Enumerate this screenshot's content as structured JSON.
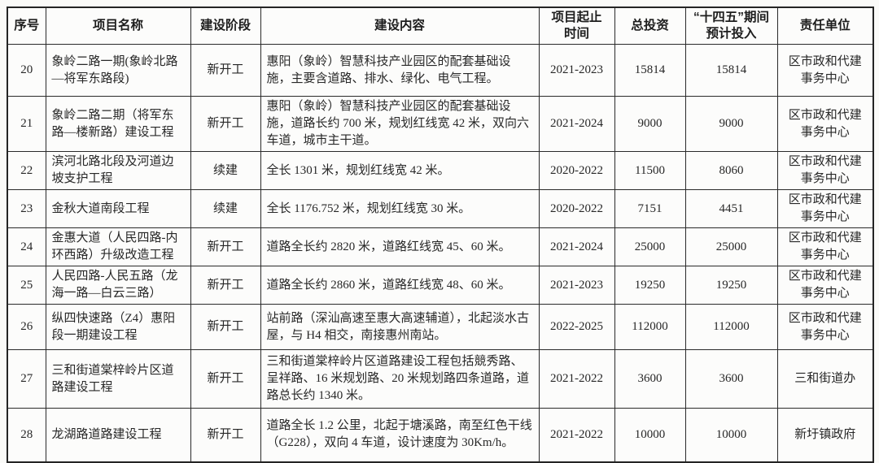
{
  "document": {
    "kind": "scanned-project-table",
    "text_color": "#272727",
    "border_color": "#2a2a2a",
    "background_color": "#fafaf8"
  },
  "table": {
    "columns": [
      {
        "key": "no",
        "label": "序号"
      },
      {
        "key": "name",
        "label": "项目名称"
      },
      {
        "key": "stage",
        "label": "建设阶段"
      },
      {
        "key": "content",
        "label": "建设内容"
      },
      {
        "key": "period",
        "label": "项目起止\n时间"
      },
      {
        "key": "total_investment",
        "label": "总投资"
      },
      {
        "key": "planned_investment",
        "label": "“十四五”期间\n预计投入"
      },
      {
        "key": "unit",
        "label": "责任单位"
      }
    ],
    "rows": [
      {
        "no": "20",
        "name": "象岭二路一期(象岭北路—将军东路段)",
        "stage": "新开工",
        "content": "惠阳（象岭）智慧科技产业园区的配套基础设施，主要含道路、排水、绿化、电气工程。",
        "period": "2021-2023",
        "total_investment": "15814",
        "planned_investment": "15814",
        "unit": "区市政和代建事务中心"
      },
      {
        "no": "21",
        "name": "象岭二路二期（将军东路—楼新路）建设工程",
        "stage": "新开工",
        "content": "惠阳（象岭）智慧科技产业园区的配套基础设施，道路长约 700 米，规划红线宽 42 米，双向六车道，城市主干道。",
        "period": "2021-2024",
        "total_investment": "9000",
        "planned_investment": "9000",
        "unit": "区市政和代建事务中心"
      },
      {
        "no": "22",
        "name": "滨河北路北段及河道边坡支护工程",
        "stage": "续建",
        "content": "全长 1301 米，规划红线宽 42 米。",
        "period": "2020-2022",
        "total_investment": "11500",
        "planned_investment": "8060",
        "unit": "区市政和代建事务中心"
      },
      {
        "no": "23",
        "name": "金秋大道南段工程",
        "stage": "续建",
        "content": "全长 1176.752 米，规划红线宽 30 米。",
        "period": "2020-2022",
        "total_investment": "7151",
        "planned_investment": "4451",
        "unit": "区市政和代建事务中心"
      },
      {
        "no": "24",
        "name": "金惠大道（人民四路-内环西路）升级改造工程",
        "stage": "新开工",
        "content": "道路全长约 2820 米，道路红线宽 45、60 米。",
        "period": "2021-2024",
        "total_investment": "25000",
        "planned_investment": "25000",
        "unit": "区市政和代建事务中心"
      },
      {
        "no": "25",
        "name": "人民四路-人民五路（龙海一路—白云三路）",
        "stage": "新开工",
        "content": "道路全长约 2860 米，道路红线宽 48、60 米。",
        "period": "2021-2023",
        "total_investment": "19250",
        "planned_investment": "19250",
        "unit": "区市政和代建事务中心"
      },
      {
        "no": "26",
        "name": "纵四快速路（Z4）惠阳段一期建设工程",
        "stage": "新开工",
        "content": "站前路（深汕高速至惠大高速辅道），北起淡水古屋，与 H4 相交，南接惠州南站。",
        "period": "2022-2025",
        "total_investment": "112000",
        "planned_investment": "112000",
        "unit": "区市政和代建事务中心"
      },
      {
        "no": "27",
        "name": "三和街道棠梓岭片区道路建设工程",
        "stage": "新开工",
        "content": "三和街道棠梓岭片区道路建设工程包括競秀路、呈祥路、16 米规划路、20 米规划路四条道路，道路总长约 1340 米。",
        "period": "2021-2022",
        "total_investment": "3600",
        "planned_investment": "3600",
        "unit": "三和街道办"
      },
      {
        "no": "28",
        "name": "龙湖路道路建设工程",
        "stage": "新开工",
        "content": "道路全长 1.2 公里，北起于塘溪路，南至红色干线（G228），双向 4 车道，设计速度为 30Km/h。",
        "period": "2021-2022",
        "total_investment": "10000",
        "planned_investment": "10000",
        "unit": "新圩镇政府"
      }
    ]
  }
}
